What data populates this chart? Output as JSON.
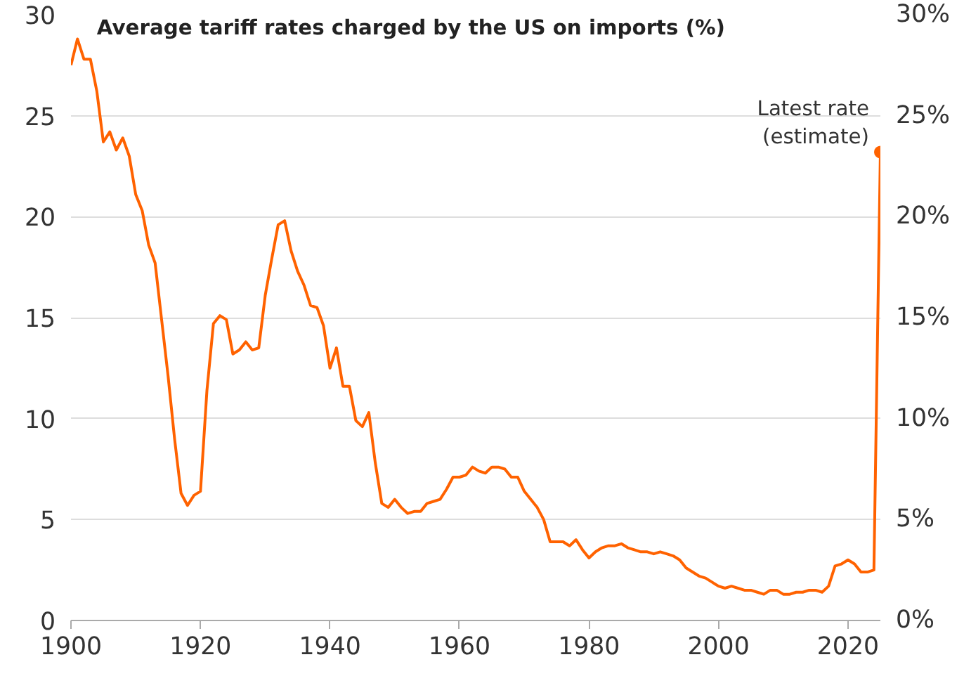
{
  "chart_data": {
    "type": "line",
    "title": "Average tariff rates charged by the US on imports (%)",
    "x": [
      1900,
      1901,
      1902,
      1903,
      1904,
      1905,
      1906,
      1907,
      1908,
      1909,
      1910,
      1911,
      1912,
      1913,
      1914,
      1915,
      1916,
      1917,
      1918,
      1919,
      1920,
      1921,
      1922,
      1923,
      1924,
      1925,
      1926,
      1927,
      1928,
      1929,
      1930,
      1931,
      1932,
      1933,
      1934,
      1935,
      1936,
      1937,
      1938,
      1939,
      1940,
      1941,
      1942,
      1943,
      1944,
      1945,
      1946,
      1947,
      1948,
      1949,
      1950,
      1951,
      1952,
      1953,
      1954,
      1955,
      1956,
      1957,
      1958,
      1959,
      1960,
      1961,
      1962,
      1963,
      1964,
      1965,
      1966,
      1967,
      1968,
      1969,
      1970,
      1971,
      1972,
      1973,
      1974,
      1975,
      1976,
      1977,
      1978,
      1979,
      1980,
      1981,
      1982,
      1983,
      1984,
      1985,
      1986,
      1987,
      1988,
      1989,
      1990,
      1991,
      1992,
      1993,
      1994,
      1995,
      1996,
      1997,
      1998,
      1999,
      2000,
      2001,
      2002,
      2003,
      2004,
      2005,
      2006,
      2007,
      2008,
      2009,
      2010,
      2011,
      2012,
      2013,
      2014,
      2015,
      2016,
      2017,
      2018,
      2019,
      2020,
      2021,
      2022,
      2023,
      2024,
      2025
    ],
    "series": [
      {
        "color": "#ff6200",
        "values": [
          27.5,
          28.8,
          27.8,
          27.8,
          26.2,
          23.7,
          24.2,
          23.3,
          23.9,
          23.0,
          21.1,
          20.3,
          18.6,
          17.7,
          14.9,
          12.1,
          9.0,
          6.3,
          5.7,
          6.2,
          6.4,
          11.4,
          14.7,
          15.1,
          14.9,
          13.2,
          13.4,
          13.8,
          13.4,
          13.5,
          16.1,
          17.9,
          19.6,
          19.8,
          18.3,
          17.3,
          16.6,
          15.6,
          15.5,
          14.6,
          12.5,
          13.5,
          11.6,
          11.6,
          9.9,
          9.6,
          10.3,
          7.8,
          5.8,
          5.6,
          6.0,
          5.6,
          5.3,
          5.4,
          5.4,
          5.8,
          5.9,
          6.0,
          6.5,
          7.1,
          7.1,
          7.2,
          7.6,
          7.4,
          7.3,
          7.6,
          7.6,
          7.5,
          7.1,
          7.1,
          6.4,
          6.0,
          5.6,
          5.0,
          3.9,
          3.9,
          3.9,
          3.7,
          4.0,
          3.5,
          3.1,
          3.4,
          3.6,
          3.7,
          3.7,
          3.8,
          3.6,
          3.5,
          3.4,
          3.4,
          3.3,
          3.4,
          3.3,
          3.2,
          3.0,
          2.6,
          2.4,
          2.2,
          2.1,
          1.9,
          1.7,
          1.6,
          1.7,
          1.6,
          1.5,
          1.5,
          1.4,
          1.3,
          1.5,
          1.5,
          1.3,
          1.3,
          1.4,
          1.4,
          1.5,
          1.5,
          1.4,
          1.7,
          2.7,
          2.8,
          3.0,
          2.8,
          2.4,
          2.4,
          2.5,
          23.2
        ]
      }
    ],
    "annotations": [
      {
        "text": "Latest rate\n(estimate)",
        "x": 2025,
        "y": 23.2
      }
    ],
    "xlim": [
      1900,
      2025
    ],
    "xticks": [
      1900,
      1920,
      1940,
      1960,
      1980,
      2000,
      2020
    ],
    "ylim": [
      0,
      30
    ],
    "yticks": [
      0,
      5,
      10,
      15,
      20,
      25,
      30
    ],
    "y2lim": [
      0,
      30
    ],
    "y2ticks": [
      {
        "value": 0,
        "label": "0%"
      },
      {
        "value": 5,
        "label": "5%"
      },
      {
        "value": 10,
        "label": "10%"
      },
      {
        "value": 15,
        "label": "15%"
      },
      {
        "value": 20,
        "label": "20%"
      },
      {
        "value": 25,
        "label": "25%"
      },
      {
        "value": 30,
        "label": "30%"
      }
    ],
    "grid": "y",
    "line_style": "solid"
  }
}
